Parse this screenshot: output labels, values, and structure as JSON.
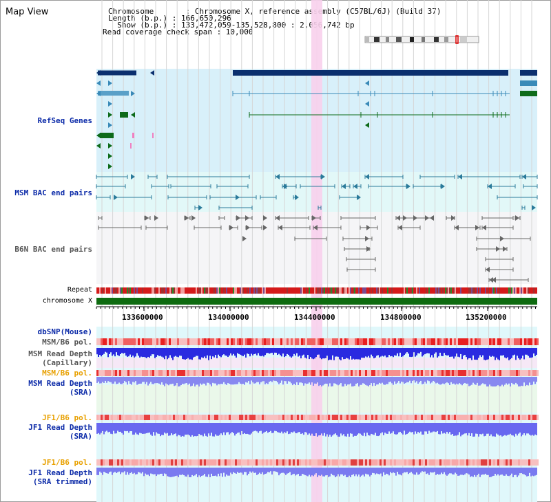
{
  "title": "Map View",
  "info": {
    "chromosome": "Chromosome       : Chromosome X, reference assembly (C57BL/6J) (Build 37)",
    "length": "Length (b.p.) : 166,650,296",
    "show": "  Show (b.p.) : 133,472,059-135,528,800 : 2,056,742 bp",
    "coverage": "Read coverage check span : 10,000"
  },
  "tracks": {
    "refseq": "RefSeq Genes",
    "msm_bac": "MSM BAC end pairs",
    "b6n_bac": "B6N BAC end pairs",
    "repeat": "Repeat",
    "chromosome": "chromosome X",
    "dbsnp": "dbSNP(Mouse)",
    "msm_pol_1": "MSM/B6 pol.",
    "msm_depth_cap": "MSM Read Depth\n(Capillary)",
    "msm_pol_2": "MSM/B6 pol.",
    "msm_depth_sra": "MSM Read Depth\n(SRA)",
    "jf1_pol_1": "JF1/B6 pol.",
    "jf1_depth_sra": "JF1 Read Depth\n(SRA)",
    "jf1_pol_2": "JF1/B6 pol.",
    "jf1_depth_trim": "JF1 Read Depth\n(SRA trimmed)"
  },
  "axis": {
    "ticks": [
      "133600000",
      "134000000",
      "134400000",
      "134800000",
      "135200000"
    ]
  },
  "colors": {
    "refseq_bg": "#d8f0fa",
    "bac_bg": "#e2f8f8",
    "b6n_bg": "#f5f5f7",
    "highlight": "#f8d0ec",
    "gene_dark": "#0b2f6e",
    "gene_mid": "#3a8ab8",
    "gene_green": "#0e6b1a",
    "chrom": "#0e6b10"
  },
  "icons": {
    "chromosome_ideogram": "chromosome-ideogram-icon"
  }
}
